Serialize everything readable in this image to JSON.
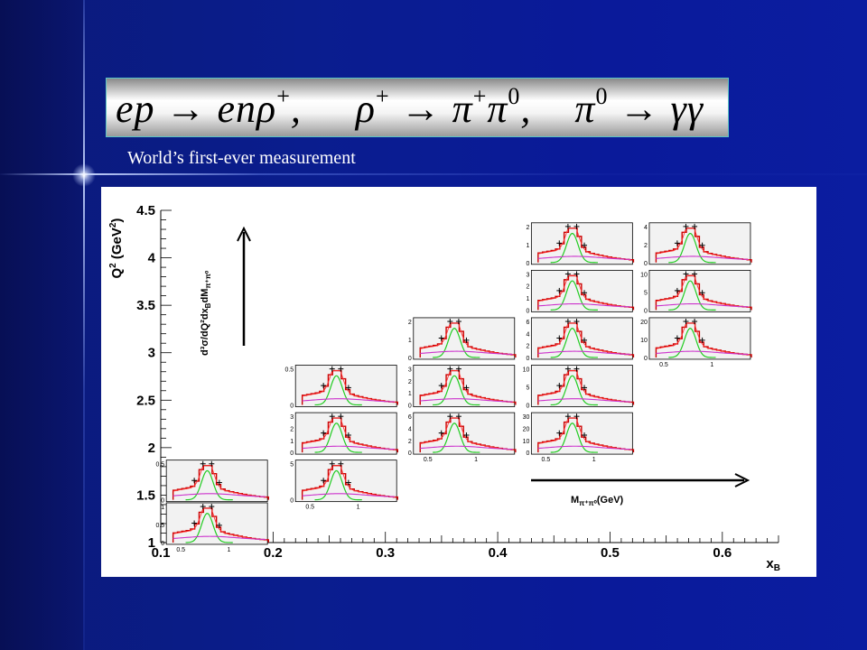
{
  "slide": {
    "equation": {
      "part1": "ep → enρ",
      "part1_sup": "+",
      "part2": "ρ",
      "part2_sup": "+",
      "part2b": " → π",
      "part2b_sup": "+",
      "part2c": "π",
      "part2c_sup": "0",
      "part3": "π",
      "part3_sup": "0",
      "part3b": " → γγ"
    },
    "subtitle": "World’s first-ever measurement"
  },
  "colors": {
    "data_hist": "#cc0000",
    "fit_total": "#ff3333",
    "resonance": "#22cc22",
    "background_fit": "#cc33cc",
    "subplot_fill": "#f2f2f2"
  },
  "chart_data": {
    "type": "scatter",
    "title": "",
    "xlabel": "x",
    "xlabel_sub": "B",
    "ylabel": "Q",
    "ylabel_sup": "2",
    "ylabel_unit": " (GeV",
    "ylabel_unit_sup": "2",
    "ylabel_unit_close": ")",
    "xlim": [
      0.1,
      0.65
    ],
    "ylim": [
      1.0,
      4.5
    ],
    "x_ticks": [
      "0.1",
      "0.2",
      "0.3",
      "0.4",
      "0.5",
      "0.6"
    ],
    "y_ticks": [
      "1",
      "1.5",
      "2",
      "2.5",
      "3",
      "3.5",
      "4",
      "4.5"
    ],
    "inner_ylabel": "d³σ/dQ²dx",
    "inner_ylabel_sub": "B",
    "inner_ylabel_tail": "dM",
    "inner_ylabel_tail_sub": "π⁺π⁰",
    "inner_xlabel": "M",
    "inner_xlabel_sub": "π⁺π⁰",
    "inner_xlabel_unit": "(GeV)",
    "subplot_mass_ticks": [
      "0.5",
      "1"
    ],
    "bins": [
      {
        "xb": 0.15,
        "q2": 1.65,
        "yticks": [
          "0.5",
          "0"
        ],
        "peak": 0.75,
        "bottom_axis": false
      },
      {
        "xb": 0.15,
        "q2": 1.2,
        "yticks": [
          "1",
          "0.5",
          "0"
        ],
        "peak": 1.25,
        "bottom_axis": true
      },
      {
        "xb": 0.265,
        "q2": 2.65,
        "yticks": [
          "0.5",
          "0"
        ],
        "peak": 0.7,
        "bottom_axis": false
      },
      {
        "xb": 0.265,
        "q2": 2.15,
        "yticks": [
          "3",
          "2",
          "1",
          "0"
        ],
        "peak": 3.3,
        "bottom_axis": false
      },
      {
        "xb": 0.265,
        "q2": 1.65,
        "yticks": [
          "5",
          "0"
        ],
        "peak": 4.0,
        "bottom_axis": true
      },
      {
        "xb": 0.37,
        "q2": 3.15,
        "yticks": [
          "2",
          "1",
          "0"
        ],
        "peak": 2.2,
        "bottom_axis": false
      },
      {
        "xb": 0.37,
        "q2": 2.65,
        "yticks": [
          "3",
          "2",
          "1",
          "0"
        ],
        "peak": 3.3,
        "bottom_axis": false
      },
      {
        "xb": 0.37,
        "q2": 2.15,
        "yticks": [
          "6",
          "4",
          "2",
          "0"
        ],
        "peak": 6.5,
        "bottom_axis": true
      },
      {
        "xb": 0.475,
        "q2": 4.15,
        "yticks": [
          "2",
          "1",
          "0"
        ],
        "peak": 2.3,
        "bottom_axis": false
      },
      {
        "xb": 0.475,
        "q2": 3.65,
        "yticks": [
          "3",
          "2",
          "1",
          "0"
        ],
        "peak": 3.2,
        "bottom_axis": false
      },
      {
        "xb": 0.475,
        "q2": 3.15,
        "yticks": [
          "6",
          "4",
          "2",
          "0"
        ],
        "peak": 6.3,
        "bottom_axis": false
      },
      {
        "xb": 0.475,
        "q2": 2.65,
        "yticks": [
          "10",
          "5",
          "0"
        ],
        "peak": 10.5,
        "bottom_axis": false
      },
      {
        "xb": 0.475,
        "q2": 2.15,
        "yticks": [
          "30",
          "20",
          "10",
          "0"
        ],
        "peak": 31,
        "bottom_axis": true
      },
      {
        "xb": 0.58,
        "q2": 4.15,
        "yticks": [
          "4",
          "2",
          "0"
        ],
        "peak": 4.3,
        "bottom_axis": false
      },
      {
        "xb": 0.58,
        "q2": 3.65,
        "yticks": [
          "10",
          "5",
          "0"
        ],
        "peak": 10.5,
        "bottom_axis": false
      },
      {
        "xb": 0.58,
        "q2": 3.15,
        "yticks": [
          "20",
          "10",
          "0"
        ],
        "peak": 21,
        "bottom_axis": true
      }
    ]
  }
}
